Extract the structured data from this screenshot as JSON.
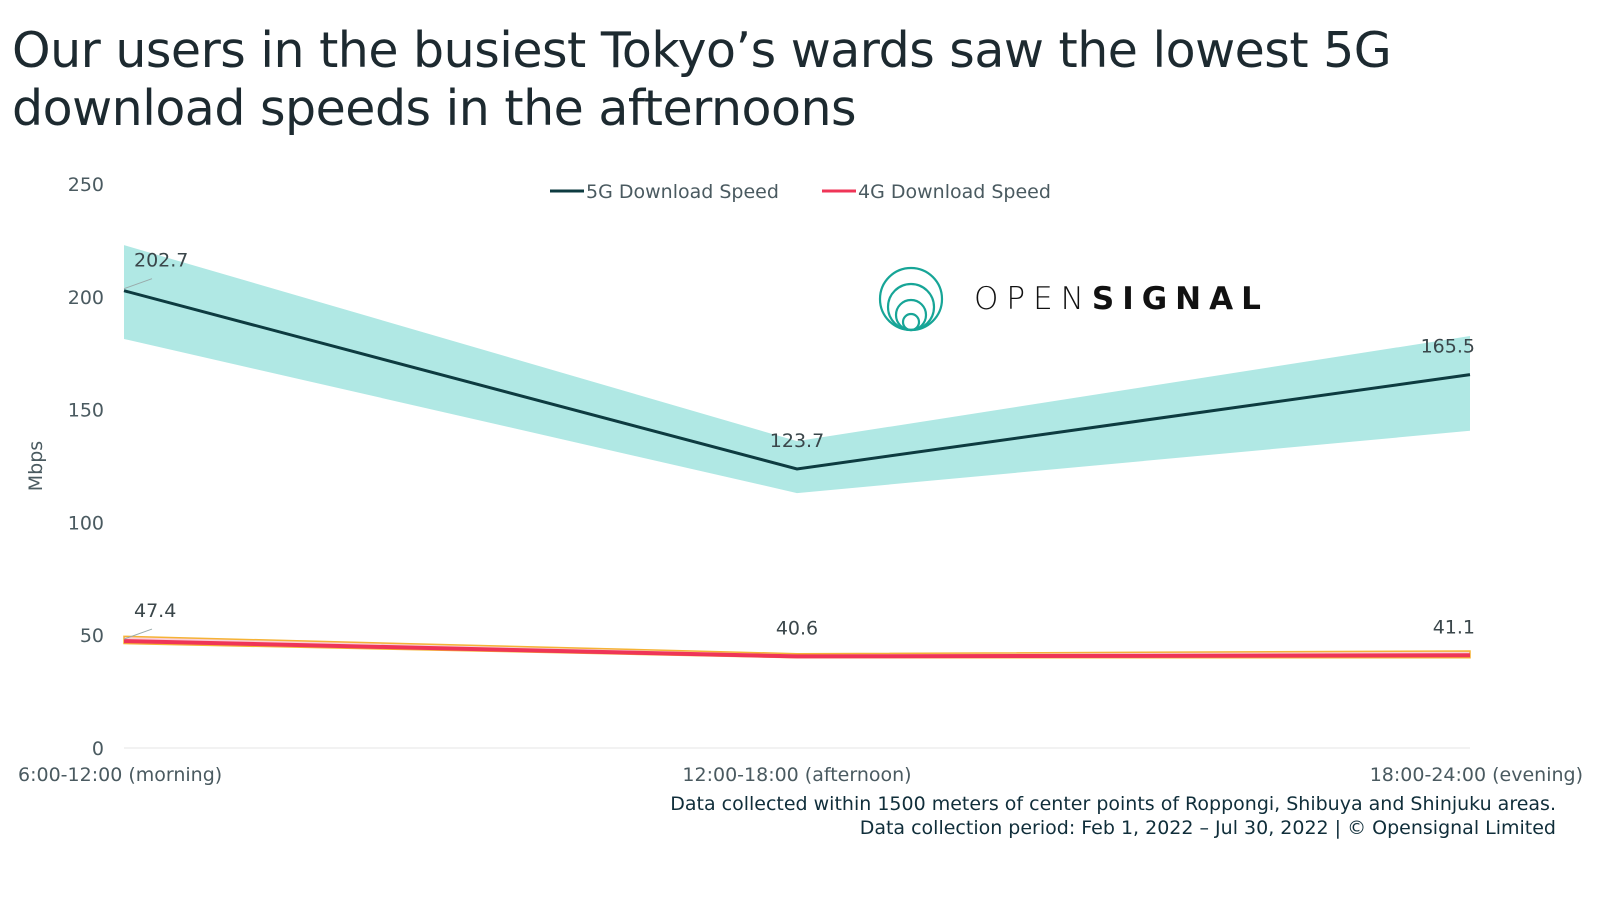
{
  "title": "Our users in the busiest Tokyo’s wards saw the lowest 5G download speeds in the afternoons",
  "logo": {
    "light": "OPEN",
    "bold": "SIGNAL"
  },
  "footnotes": [
    "Data collected within 1500 meters of center points of Roppongi, Shibuya and Shinjuku areas.",
    "Data collection period: Feb 1, 2022 – Jul 30, 2022 | © Opensignal Limited"
  ],
  "chart_data": {
    "type": "line",
    "ylabel": "Mbps",
    "xlabel": "",
    "ylim": [
      0,
      250
    ],
    "yticks": [
      0,
      50,
      100,
      150,
      200,
      250
    ],
    "categories": [
      "6:00-12:00 (morning)",
      "12:00-18:00 (afternoon)",
      "18:00-24:00 (evening)"
    ],
    "legend_position": "top-center",
    "grid": false,
    "series": [
      {
        "name": "5G Download Speed",
        "values": [
          202.7,
          123.7,
          165.5
        ],
        "color": "#0d3b40",
        "band_lower": [
          181.3,
          113.0,
          140.6
        ],
        "band_upper": [
          222.9,
          136.0,
          182.6
        ],
        "band_color": "#b0e8e4"
      },
      {
        "name": "4G Download Speed",
        "values": [
          47.4,
          40.6,
          41.1
        ],
        "color": "#ef3557",
        "band_lower": [
          46.3,
          40.0,
          40.0
        ],
        "band_upper": [
          49.5,
          41.8,
          43.0
        ],
        "band_color": "#fbd0d8",
        "band_edge_color": "#f5b335"
      }
    ]
  }
}
